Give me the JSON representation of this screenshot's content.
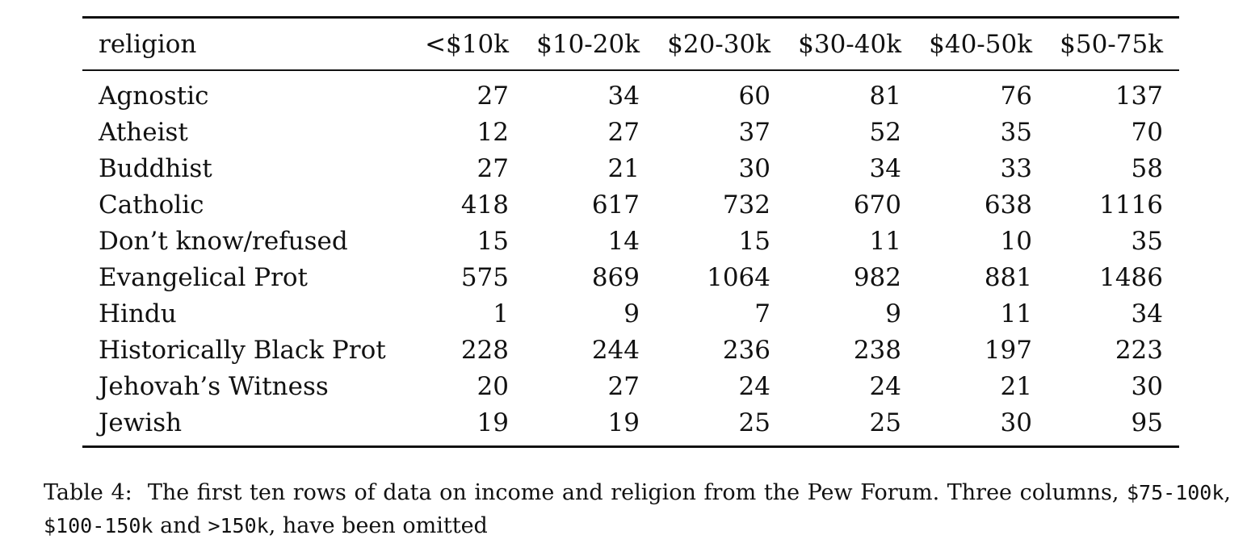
{
  "table": {
    "columns": [
      "religion",
      "<$10k",
      "$10-20k",
      "$20-30k",
      "$30-40k",
      "$40-50k",
      "$50-75k"
    ],
    "rows": [
      [
        "Agnostic",
        "27",
        "34",
        "60",
        "81",
        "76",
        "137"
      ],
      [
        "Atheist",
        "12",
        "27",
        "37",
        "52",
        "35",
        "70"
      ],
      [
        "Buddhist",
        "27",
        "21",
        "30",
        "34",
        "33",
        "58"
      ],
      [
        "Catholic",
        "418",
        "617",
        "732",
        "670",
        "638",
        "1116"
      ],
      [
        "Don’t know/refused",
        "15",
        "14",
        "15",
        "11",
        "10",
        "35"
      ],
      [
        "Evangelical Prot",
        "575",
        "869",
        "1064",
        "982",
        "881",
        "1486"
      ],
      [
        "Hindu",
        "1",
        "9",
        "7",
        "9",
        "11",
        "34"
      ],
      [
        "Historically Black Prot",
        "228",
        "244",
        "236",
        "238",
        "197",
        "223"
      ],
      [
        "Jehovah’s Witness",
        "20",
        "27",
        "24",
        "24",
        "21",
        "30"
      ],
      [
        "Jewish",
        "19",
        "19",
        "25",
        "25",
        "30",
        "95"
      ]
    ]
  },
  "caption": {
    "label": "Table 4:",
    "text": "The first ten rows of data on income and religion from the Pew Forum. Three columns,",
    "code1": "$75-100k",
    "sep1": ",",
    "code2": "$100-150k",
    "sep2": "and",
    "code3": ">150k",
    "tail": ", have been omitted"
  }
}
